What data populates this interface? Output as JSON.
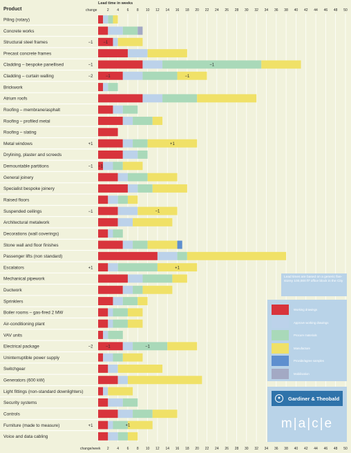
{
  "chart_data": {
    "type": "stacked-bar",
    "orientation": "horizontal",
    "header_label": "Product",
    "xlabel": "Lead time in weeks",
    "change_header": "change",
    "change_footer": "change/week",
    "xticks": [
      2,
      4,
      6,
      8,
      10,
      12,
      14,
      16,
      18,
      20,
      22,
      24,
      26,
      28,
      30,
      32,
      34,
      36,
      38,
      40,
      42,
      44,
      46,
      48,
      50
    ],
    "xlim": [
      0,
      50
    ],
    "grid": true,
    "legend_position": "bottom-right",
    "phase_colors": {
      "working": "#d8343c",
      "approve": "#bcd2ea",
      "procure": "#a9d9b9",
      "manufacture": "#f0e167",
      "provide": "#5e8fcf",
      "mobilisation": "#a3a9c4"
    },
    "legend": [
      {
        "key": "working",
        "label": "Working drawings"
      },
      {
        "key": "approve",
        "label": "Approve working drawings"
      },
      {
        "key": "procure",
        "label": "Procure materials"
      },
      {
        "key": "manufacture",
        "label": "Manufacture"
      },
      {
        "key": "provide",
        "label": "Provide/agree samples"
      },
      {
        "key": "mobilisation",
        "label": "Mobilisation"
      }
    ],
    "note": "Lead times are based on a generic five-storey 100,000 ft² office block in the City",
    "rows": [
      {
        "label": "Piling (rotary)",
        "change": "",
        "segments": [
          [
            "working",
            1
          ],
          [
            "approve",
            1
          ],
          [
            "procure",
            1
          ],
          [
            "manufacture",
            1
          ]
        ],
        "annotations": []
      },
      {
        "label": "Concrete works",
        "change": "",
        "segments": [
          [
            "working",
            2
          ],
          [
            "approve",
            3
          ],
          [
            "procure",
            3
          ],
          [
            "mobilisation",
            1
          ]
        ],
        "annotations": []
      },
      {
        "label": "Structural steel frames",
        "change": "−1",
        "segments": [
          [
            "working",
            3
          ],
          [
            "approve",
            1
          ],
          [
            "manufacture",
            5
          ]
        ],
        "annotations": [
          {
            "at": 1.5,
            "text": "−1"
          }
        ]
      },
      {
        "label": "Precast concrete frames",
        "change": "",
        "segments": [
          [
            "working",
            6
          ],
          [
            "approve",
            4
          ],
          [
            "manufacture",
            8
          ]
        ],
        "annotations": []
      },
      {
        "label": "Cladding – bespoke panellised",
        "change": "−1",
        "segments": [
          [
            "working",
            9
          ],
          [
            "approve",
            4
          ],
          [
            "procure",
            20
          ],
          [
            "manufacture",
            8
          ]
        ],
        "annotations": [
          {
            "at": 23,
            "text": "−1"
          }
        ]
      },
      {
        "label": "Cladding – curtain walling",
        "change": "−2",
        "segments": [
          [
            "working",
            5
          ],
          [
            "approve",
            4
          ],
          [
            "procure",
            7
          ],
          [
            "manufacture",
            6
          ]
        ],
        "annotations": [
          {
            "at": 2,
            "text": "−1"
          },
          {
            "at": 18,
            "text": "−1"
          }
        ]
      },
      {
        "label": "Brickwork",
        "change": "",
        "segments": [
          [
            "working",
            1
          ],
          [
            "approve",
            1
          ],
          [
            "procure",
            2
          ]
        ],
        "annotations": []
      },
      {
        "label": "Atrium roofs",
        "change": "",
        "segments": [
          [
            "working",
            9
          ],
          [
            "approve",
            4
          ],
          [
            "procure",
            7
          ],
          [
            "manufacture",
            12
          ]
        ],
        "annotations": []
      },
      {
        "label": "Roofing – membrane/asphalt",
        "change": "",
        "segments": [
          [
            "working",
            3
          ],
          [
            "approve",
            2
          ],
          [
            "procure",
            3
          ]
        ],
        "annotations": []
      },
      {
        "label": "Roofing – profiled metal",
        "change": "",
        "segments": [
          [
            "working",
            5
          ],
          [
            "approve",
            2
          ],
          [
            "procure",
            4
          ],
          [
            "manufacture",
            2
          ]
        ],
        "annotations": []
      },
      {
        "label": "Roofing – slating",
        "change": "",
        "segments": [
          [
            "working",
            4
          ]
        ],
        "annotations": []
      },
      {
        "label": "Metal windows",
        "change": "+1",
        "segments": [
          [
            "working",
            5
          ],
          [
            "approve",
            2
          ],
          [
            "procure",
            3
          ],
          [
            "manufacture",
            10
          ]
        ],
        "annotations": [
          {
            "at": 15,
            "text": "+1"
          }
        ]
      },
      {
        "label": "Drylining, plaster and screeds",
        "change": "",
        "segments": [
          [
            "working",
            5
          ],
          [
            "approve",
            3
          ],
          [
            "procure",
            2
          ]
        ],
        "annotations": []
      },
      {
        "label": "Demountable partitions",
        "change": "−1",
        "segments": [
          [
            "working",
            1
          ],
          [
            "approve",
            2
          ],
          [
            "procure",
            2
          ],
          [
            "manufacture",
            4
          ]
        ],
        "annotations": [
          {
            "at": 0.5,
            "text": "−1"
          }
        ]
      },
      {
        "label": "General joinery",
        "change": "",
        "segments": [
          [
            "working",
            4
          ],
          [
            "approve",
            2
          ],
          [
            "procure",
            4
          ],
          [
            "manufacture",
            6
          ]
        ],
        "annotations": []
      },
      {
        "label": "Specialist bespoke joinery",
        "change": "",
        "segments": [
          [
            "working",
            6
          ],
          [
            "approve",
            2
          ],
          [
            "procure",
            3
          ],
          [
            "manufacture",
            7
          ]
        ],
        "annotations": []
      },
      {
        "label": "Raised floors",
        "change": "",
        "segments": [
          [
            "working",
            2
          ],
          [
            "approve",
            2
          ],
          [
            "procure",
            2
          ],
          [
            "manufacture",
            2
          ]
        ],
        "annotations": []
      },
      {
        "label": "Suspended ceilings",
        "change": "−1",
        "segments": [
          [
            "working",
            4
          ],
          [
            "approve",
            4
          ],
          [
            "manufacture",
            8
          ]
        ],
        "annotations": [
          {
            "at": 12,
            "text": "−1"
          }
        ]
      },
      {
        "label": "Architectural metalwork",
        "change": "",
        "segments": [
          [
            "working",
            4
          ],
          [
            "approve",
            3
          ],
          [
            "manufacture",
            8
          ]
        ],
        "annotations": []
      },
      {
        "label": "Decorations (wall coverings)",
        "change": "",
        "segments": [
          [
            "working",
            2
          ],
          [
            "approve",
            1
          ],
          [
            "procure",
            2
          ]
        ],
        "annotations": []
      },
      {
        "label": "Stone wall and floor finishes",
        "change": "",
        "segments": [
          [
            "working",
            5
          ],
          [
            "approve",
            2
          ],
          [
            "procure",
            3
          ],
          [
            "manufacture",
            6
          ],
          [
            "provide",
            1
          ]
        ],
        "annotations": []
      },
      {
        "label": "Passenger lifts (non standard)",
        "change": "",
        "segments": [
          [
            "working",
            12
          ],
          [
            "approve",
            4
          ],
          [
            "procure",
            2
          ],
          [
            "manufacture",
            20
          ]
        ],
        "annotations": []
      },
      {
        "label": "Escalators",
        "change": "+1",
        "segments": [
          [
            "working",
            2
          ],
          [
            "approve",
            2
          ],
          [
            "procure",
            8
          ],
          [
            "manufacture",
            8
          ]
        ],
        "annotations": [
          {
            "at": 16,
            "text": "+1"
          }
        ]
      },
      {
        "label": "Mechanical pipework",
        "change": "",
        "segments": [
          [
            "working",
            6
          ],
          [
            "approve",
            3
          ],
          [
            "procure",
            6
          ],
          [
            "manufacture",
            3
          ]
        ],
        "annotations": []
      },
      {
        "label": "Ductwork",
        "change": "",
        "segments": [
          [
            "working",
            5
          ],
          [
            "approve",
            2
          ],
          [
            "procure",
            2
          ],
          [
            "manufacture",
            6
          ]
        ],
        "annotations": []
      },
      {
        "label": "Sprinklers",
        "change": "",
        "segments": [
          [
            "working",
            3
          ],
          [
            "approve",
            2
          ],
          [
            "procure",
            3
          ],
          [
            "manufacture",
            2
          ]
        ],
        "annotations": []
      },
      {
        "label": "Boiler rooms – gas-fired 2 MW",
        "change": "",
        "segments": [
          [
            "working",
            2
          ],
          [
            "approve",
            1
          ],
          [
            "procure",
            3
          ],
          [
            "manufacture",
            3
          ]
        ],
        "annotations": []
      },
      {
        "label": "Air-conditioning plant",
        "change": "",
        "segments": [
          [
            "working",
            2
          ],
          [
            "approve",
            1
          ],
          [
            "procure",
            3
          ],
          [
            "manufacture",
            3
          ]
        ],
        "annotations": []
      },
      {
        "label": "VAV units",
        "change": "",
        "segments": [
          [
            "working",
            1
          ],
          [
            "approve",
            1
          ],
          [
            "procure",
            3
          ]
        ],
        "annotations": []
      },
      {
        "label": "Electrical package",
        "change": "−2",
        "segments": [
          [
            "working",
            5
          ],
          [
            "approve",
            2
          ],
          [
            "procure",
            7
          ],
          [
            "manufacture",
            6
          ]
        ],
        "annotations": [
          {
            "at": 2,
            "text": "−1"
          },
          {
            "at": 10,
            "text": "−1"
          }
        ]
      },
      {
        "label": "Uninterruptible power supply",
        "change": "",
        "segments": [
          [
            "working",
            1
          ],
          [
            "approve",
            2
          ],
          [
            "procure",
            2
          ],
          [
            "manufacture",
            4
          ]
        ],
        "annotations": []
      },
      {
        "label": "Switchgear",
        "change": "",
        "segments": [
          [
            "working",
            2
          ],
          [
            "approve",
            2
          ],
          [
            "manufacture",
            9
          ]
        ],
        "annotations": []
      },
      {
        "label": "Generators (600 kW)",
        "change": "",
        "segments": [
          [
            "working",
            4
          ],
          [
            "approve",
            2
          ],
          [
            "manufacture",
            15
          ]
        ],
        "annotations": []
      },
      {
        "label": "Light fittings (non-standard downlighters)",
        "change": "",
        "segments": [
          [
            "working",
            1
          ],
          [
            "approve",
            1
          ],
          [
            "manufacture",
            5
          ]
        ],
        "annotations": []
      },
      {
        "label": "Security systems",
        "change": "",
        "segments": [
          [
            "working",
            2
          ],
          [
            "approve",
            3
          ],
          [
            "procure",
            3
          ]
        ],
        "annotations": []
      },
      {
        "label": "Controls",
        "change": "",
        "segments": [
          [
            "working",
            4
          ],
          [
            "approve",
            3
          ],
          [
            "procure",
            4
          ],
          [
            "manufacture",
            5
          ]
        ],
        "annotations": []
      },
      {
        "label": "Furniture (made to measure)",
        "change": "+1",
        "segments": [
          [
            "working",
            2
          ],
          [
            "approve",
            1
          ],
          [
            "procure",
            3
          ],
          [
            "manufacture",
            5
          ]
        ],
        "annotations": [
          {
            "at": 6,
            "text": "+1"
          }
        ]
      },
      {
        "label": "Voice and data cabling",
        "change": "",
        "segments": [
          [
            "working",
            2
          ],
          [
            "approve",
            2
          ],
          [
            "procure",
            2
          ],
          [
            "manufacture",
            2
          ]
        ],
        "annotations": []
      }
    ]
  },
  "branding": {
    "gt_logo_text": "Gardiner & Theobald",
    "mace_logo_text": "m|a|c|e"
  }
}
